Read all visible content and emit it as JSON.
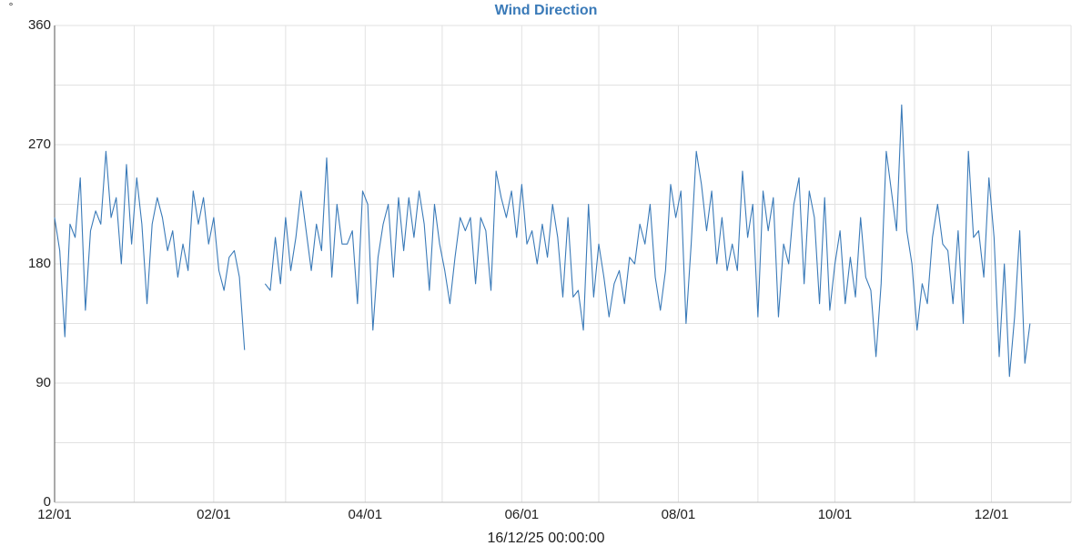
{
  "chart_data": {
    "type": "line",
    "title": "Wind Direction",
    "ylabel": "°",
    "xlabel": "16/12/25 00:00:00",
    "grid": true,
    "xlim": [
      "2024-12-01",
      "2026-01-01"
    ],
    "xticks": [
      {
        "value": "2024-12-01",
        "label": "12/01"
      },
      {
        "value": "2025-02-01",
        "label": "02/01"
      },
      {
        "value": "2025-04-01",
        "label": "04/01"
      },
      {
        "value": "2025-06-01",
        "label": "06/01"
      },
      {
        "value": "2025-08-01",
        "label": "08/01"
      },
      {
        "value": "2025-10-01",
        "label": "10/01"
      },
      {
        "value": "2025-12-01",
        "label": "12/01"
      }
    ],
    "x_minor_grid": [
      "2025-01-01",
      "2025-03-01",
      "2025-05-01",
      "2025-07-01",
      "2025-09-01",
      "2025-11-01"
    ],
    "ylim": [
      0,
      360
    ],
    "yticks": [
      0,
      90,
      180,
      270,
      360
    ],
    "y_minor_grid": [
      45,
      135,
      225,
      315
    ],
    "x": [
      "2024-12-01",
      "2024-12-03",
      "2024-12-05",
      "2024-12-07",
      "2024-12-09",
      "2024-12-11",
      "2024-12-13",
      "2024-12-15",
      "2024-12-17",
      "2024-12-19",
      "2024-12-21",
      "2024-12-23",
      "2024-12-25",
      "2024-12-27",
      "2024-12-29",
      "2024-12-31",
      "2025-01-02",
      "2025-01-04",
      "2025-01-06",
      "2025-01-08",
      "2025-01-10",
      "2025-01-12",
      "2025-01-14",
      "2025-01-16",
      "2025-01-18",
      "2025-01-20",
      "2025-01-22",
      "2025-01-24",
      "2025-01-26",
      "2025-01-28",
      "2025-01-30",
      "2025-02-01",
      "2025-02-03",
      "2025-02-05",
      "2025-02-07",
      "2025-02-09",
      "2025-02-11",
      "2025-02-13",
      "2025-02-15",
      "2025-02-17",
      "2025-02-19",
      "2025-02-21",
      "2025-02-23",
      "2025-02-25",
      "2025-02-27",
      "2025-03-01",
      "2025-03-03",
      "2025-03-05",
      "2025-03-07",
      "2025-03-09",
      "2025-03-11",
      "2025-03-13",
      "2025-03-15",
      "2025-03-17",
      "2025-03-19",
      "2025-03-21",
      "2025-03-23",
      "2025-03-25",
      "2025-03-27",
      "2025-03-29",
      "2025-03-31",
      "2025-04-02",
      "2025-04-04",
      "2025-04-06",
      "2025-04-08",
      "2025-04-10",
      "2025-04-12",
      "2025-04-14",
      "2025-04-16",
      "2025-04-18",
      "2025-04-20",
      "2025-04-22",
      "2025-04-24",
      "2025-04-26",
      "2025-04-28",
      "2025-04-30",
      "2025-05-02",
      "2025-05-04",
      "2025-05-06",
      "2025-05-08",
      "2025-05-10",
      "2025-05-12",
      "2025-05-14",
      "2025-05-16",
      "2025-05-18",
      "2025-05-20",
      "2025-05-22",
      "2025-05-24",
      "2025-05-26",
      "2025-05-28",
      "2025-05-30",
      "2025-06-01",
      "2025-06-03",
      "2025-06-05",
      "2025-06-07",
      "2025-06-09",
      "2025-06-11",
      "2025-06-13",
      "2025-06-15",
      "2025-06-17",
      "2025-06-19",
      "2025-06-21",
      "2025-06-23",
      "2025-06-25",
      "2025-06-27",
      "2025-06-29",
      "2025-07-01",
      "2025-07-03",
      "2025-07-05",
      "2025-07-07",
      "2025-07-09",
      "2025-07-11",
      "2025-07-13",
      "2025-07-15",
      "2025-07-17",
      "2025-07-19",
      "2025-07-21",
      "2025-07-23",
      "2025-07-25",
      "2025-07-27",
      "2025-07-29",
      "2025-07-31",
      "2025-08-02",
      "2025-08-04",
      "2025-08-06",
      "2025-08-08",
      "2025-08-10",
      "2025-08-12",
      "2025-08-14",
      "2025-08-16",
      "2025-08-18",
      "2025-08-20",
      "2025-08-22",
      "2025-08-24",
      "2025-08-26",
      "2025-08-28",
      "2025-08-30",
      "2025-09-01",
      "2025-09-03",
      "2025-09-05",
      "2025-09-07",
      "2025-09-09",
      "2025-09-11",
      "2025-09-13",
      "2025-09-15",
      "2025-09-17",
      "2025-09-19",
      "2025-09-21",
      "2025-09-23",
      "2025-09-25",
      "2025-09-27",
      "2025-09-29",
      "2025-10-01",
      "2025-10-03",
      "2025-10-05",
      "2025-10-07",
      "2025-10-09",
      "2025-10-11",
      "2025-10-13",
      "2025-10-15",
      "2025-10-17",
      "2025-10-19",
      "2025-10-21",
      "2025-10-23",
      "2025-10-25",
      "2025-10-27",
      "2025-10-29",
      "2025-10-31",
      "2025-11-02",
      "2025-11-04",
      "2025-11-06",
      "2025-11-08",
      "2025-11-10",
      "2025-11-12",
      "2025-11-14",
      "2025-11-16",
      "2025-11-18",
      "2025-11-20",
      "2025-11-22",
      "2025-11-24",
      "2025-11-26",
      "2025-11-28",
      "2025-11-30",
      "2025-12-02",
      "2025-12-04",
      "2025-12-06",
      "2025-12-08",
      "2025-12-10",
      "2025-12-12",
      "2025-12-14",
      "2025-12-16"
    ],
    "series": [
      {
        "color": "#3a7ab8",
        "values": [
          215,
          190,
          125,
          210,
          200,
          245,
          145,
          205,
          220,
          210,
          265,
          215,
          230,
          180,
          255,
          195,
          245,
          210,
          150,
          210,
          230,
          215,
          190,
          205,
          170,
          195,
          175,
          235,
          210,
          230,
          195,
          215,
          175,
          160,
          185,
          190,
          170,
          115,
          null,
          null,
          null,
          165,
          160,
          200,
          165,
          215,
          175,
          200,
          235,
          205,
          175,
          210,
          190,
          260,
          170,
          225,
          195,
          195,
          205,
          150,
          235,
          225,
          130,
          185,
          210,
          225,
          170,
          230,
          190,
          230,
          200,
          235,
          210,
          160,
          225,
          195,
          175,
          150,
          185,
          215,
          205,
          215,
          165,
          215,
          205,
          160,
          250,
          230,
          215,
          235,
          200,
          240,
          195,
          205,
          180,
          210,
          185,
          225,
          200,
          155,
          215,
          155,
          160,
          130,
          225,
          155,
          195,
          170,
          140,
          165,
          175,
          150,
          185,
          180,
          210,
          195,
          225,
          170,
          145,
          175,
          240,
          215,
          235,
          135,
          195,
          265,
          240,
          205,
          235,
          180,
          215,
          175,
          195,
          175,
          250,
          200,
          225,
          140,
          235,
          205,
          230,
          140,
          195,
          180,
          225,
          245,
          165,
          235,
          215,
          150,
          230,
          145,
          180,
          205,
          150,
          185,
          155,
          215,
          170,
          160,
          110,
          165,
          265,
          235,
          205,
          300,
          205,
          180,
          130,
          165,
          150,
          200,
          225,
          195,
          190,
          150,
          205,
          135,
          265,
          200,
          205,
          170,
          245,
          200,
          110,
          180,
          95,
          140,
          205,
          105,
          135
        ]
      }
    ]
  }
}
